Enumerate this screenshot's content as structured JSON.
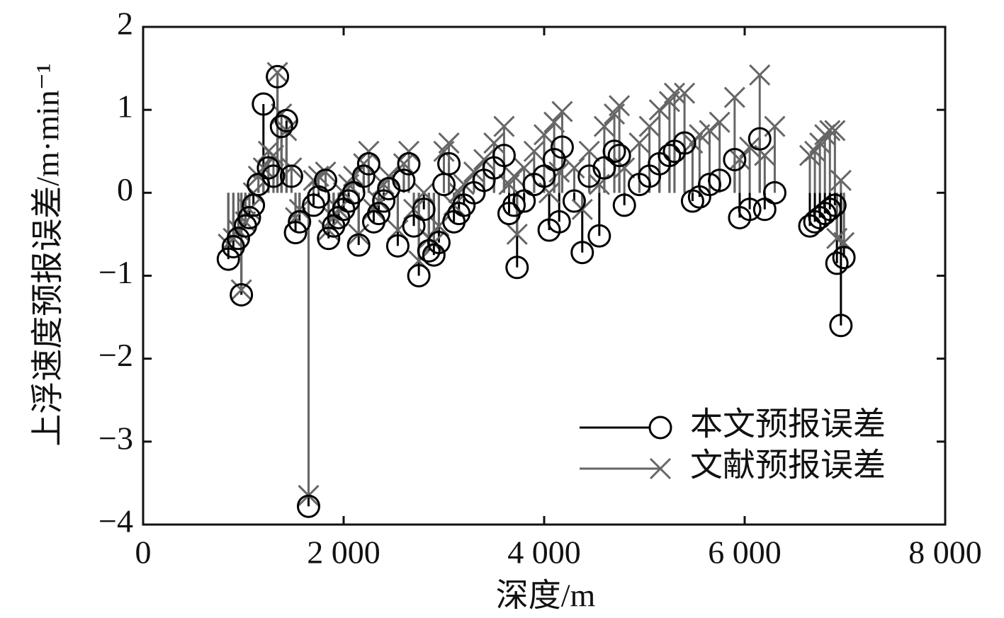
{
  "chart_data": {
    "type": "stem",
    "xlabel": "深度/m",
    "ylabel": "上浮速度预报误差/m·min⁻¹",
    "x": [
      850,
      900,
      950,
      980,
      1020,
      1060,
      1100,
      1150,
      1200,
      1250,
      1300,
      1340,
      1380,
      1430,
      1480,
      1520,
      1560,
      1650,
      1700,
      1750,
      1820,
      1850,
      1900,
      1950,
      2000,
      2050,
      2100,
      2150,
      2200,
      2250,
      2300,
      2350,
      2400,
      2450,
      2540,
      2600,
      2650,
      2700,
      2750,
      2800,
      2850,
      2900,
      2950,
      3000,
      3050,
      3100,
      3150,
      3200,
      3300,
      3400,
      3500,
      3600,
      3650,
      3700,
      3730,
      3800,
      3900,
      4000,
      4050,
      4100,
      4150,
      4180,
      4300,
      4380,
      4450,
      4550,
      4600,
      4700,
      4750,
      4800,
      4950,
      5050,
      5150,
      5250,
      5300,
      5400,
      5480,
      5550,
      5650,
      5750,
      5900,
      5950,
      6050,
      6150,
      6200,
      6300,
      6650,
      6700,
      6750,
      6800,
      6850,
      6900,
      6920,
      6960,
      6990
    ],
    "series": [
      {
        "name": "本文预报误差",
        "color": "#000000",
        "marker": "circle",
        "values": [
          -0.8,
          -0.65,
          -0.55,
          -1.23,
          -0.4,
          -0.3,
          -0.15,
          0.1,
          1.07,
          0.3,
          0.2,
          1.4,
          0.8,
          0.87,
          0.2,
          -0.48,
          -0.35,
          -3.78,
          -0.15,
          -0.05,
          0.15,
          -0.55,
          -0.4,
          -0.3,
          -0.2,
          -0.1,
          0.0,
          -0.63,
          0.2,
          0.35,
          -0.35,
          -0.25,
          -0.1,
          0.05,
          -0.64,
          0.15,
          0.35,
          -0.4,
          -1.0,
          -0.2,
          -0.7,
          -0.75,
          -0.6,
          0.1,
          0.35,
          -0.35,
          -0.25,
          -0.15,
          0.0,
          0.15,
          0.3,
          0.45,
          -0.25,
          -0.15,
          -0.9,
          -0.1,
          0.1,
          0.2,
          -0.45,
          0.4,
          -0.35,
          0.55,
          -0.1,
          -0.72,
          0.2,
          -0.52,
          0.3,
          0.5,
          0.45,
          -0.15,
          0.1,
          0.2,
          0.35,
          0.45,
          0.5,
          0.6,
          -0.1,
          -0.05,
          0.1,
          0.15,
          0.4,
          -0.3,
          -0.2,
          0.65,
          -0.2,
          0.0,
          -0.4,
          -0.35,
          -0.3,
          -0.25,
          -0.2,
          -0.15,
          -0.85,
          -1.6,
          -0.78
        ]
      },
      {
        "name": "文献预报误差",
        "color": "#666666",
        "marker": "cross",
        "values": [
          -0.62,
          -0.55,
          -0.45,
          -1.17,
          -0.35,
          -0.2,
          0.0,
          0.2,
          0.3,
          0.5,
          0.45,
          1.45,
          0.95,
          0.75,
          0.3,
          -0.3,
          -0.2,
          -3.65,
          0.15,
          0.2,
          0.25,
          -0.45,
          -0.3,
          -0.2,
          0.0,
          0.1,
          0.2,
          -0.5,
          0.35,
          0.5,
          -0.2,
          -0.1,
          0.1,
          0.2,
          -0.45,
          0.35,
          0.5,
          -0.2,
          -0.82,
          0.0,
          -0.55,
          -0.6,
          -0.4,
          0.5,
          0.6,
          -0.15,
          0.0,
          0.1,
          0.25,
          0.4,
          0.6,
          0.8,
          0.1,
          0.2,
          -0.5,
          0.3,
          0.5,
          0.7,
          0.0,
          0.85,
          0.25,
          0.98,
          0.3,
          -0.2,
          0.5,
          0.1,
          0.8,
          0.95,
          1.05,
          0.3,
          0.6,
          0.8,
          1.0,
          1.1,
          1.2,
          1.2,
          0.6,
          0.7,
          0.75,
          0.85,
          1.15,
          0.4,
          0.55,
          1.42,
          0.45,
          0.8,
          0.45,
          0.5,
          0.6,
          0.7,
          0.75,
          0.75,
          -0.55,
          0.15,
          -0.6
        ]
      }
    ],
    "xlim": [
      0,
      8000
    ],
    "xticks": [
      0,
      {
        "value": 2000,
        "label": "2 000"
      },
      {
        "value": 4000,
        "label": "4 000"
      },
      {
        "value": 6000,
        "label": "6 000"
      },
      {
        "value": 8000,
        "label": "8 000"
      }
    ],
    "ylim": [
      -4,
      2
    ],
    "yticks": [
      {
        "value": -4,
        "label": "−4"
      },
      {
        "value": -3,
        "label": "−3"
      },
      {
        "value": -2,
        "label": "−2"
      },
      {
        "value": -1,
        "label": "−1"
      },
      0,
      1,
      2
    ],
    "legend": "lower right"
  }
}
